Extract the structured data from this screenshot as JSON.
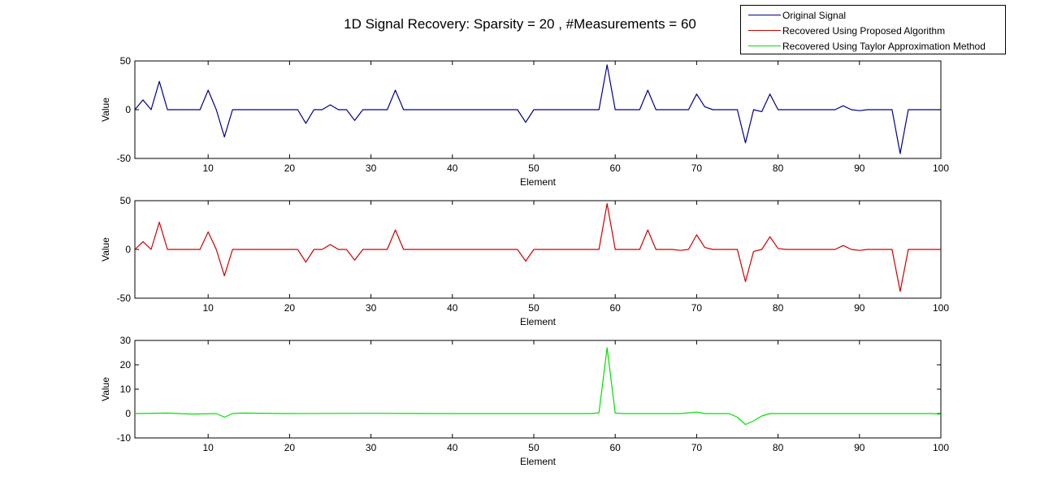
{
  "title": "1D Signal Recovery: Sparsity = 20 , #Measurements = 60",
  "legend": [
    {
      "label": "Original Signal",
      "color": "#00008b"
    },
    {
      "label": "Recovered Using Proposed Algorithm",
      "color": "#cc0000"
    },
    {
      "label": "Recovered Using Taylor Approximation Method",
      "color": "#00e000"
    }
  ],
  "chart_data": [
    {
      "type": "line",
      "xlabel": "Element",
      "ylabel": "Value",
      "xlim": [
        1,
        100
      ],
      "ylim": [
        -50,
        50
      ],
      "xticks": [
        10,
        20,
        30,
        40,
        50,
        60,
        70,
        80,
        90,
        100
      ],
      "yticks": [
        -50,
        0,
        50
      ],
      "series": [
        {
          "name": "Original Signal",
          "color": "#00008b",
          "points": [
            [
              1,
              0
            ],
            [
              2,
              10
            ],
            [
              3,
              0
            ],
            [
              4,
              29
            ],
            [
              5,
              0
            ],
            [
              9,
              0
            ],
            [
              10,
              20
            ],
            [
              11,
              0
            ],
            [
              12,
              -28
            ],
            [
              13,
              0
            ],
            [
              21,
              0
            ],
            [
              22,
              -14
            ],
            [
              23,
              0
            ],
            [
              24,
              0
            ],
            [
              25,
              5
            ],
            [
              26,
              0
            ],
            [
              27,
              0
            ],
            [
              28,
              -11
            ],
            [
              29,
              0
            ],
            [
              32,
              0
            ],
            [
              33,
              20
            ],
            [
              34,
              0
            ],
            [
              48,
              0
            ],
            [
              49,
              -13
            ],
            [
              50,
              0
            ],
            [
              58,
              0
            ],
            [
              59,
              46
            ],
            [
              60,
              0
            ],
            [
              63,
              0
            ],
            [
              64,
              20
            ],
            [
              65,
              0
            ],
            [
              69,
              0
            ],
            [
              70,
              16
            ],
            [
              71,
              3
            ],
            [
              72,
              0
            ],
            [
              75,
              0
            ],
            [
              76,
              -34
            ],
            [
              77,
              0
            ],
            [
              78,
              -2
            ],
            [
              79,
              16
            ],
            [
              80,
              0
            ],
            [
              87,
              0
            ],
            [
              88,
              4
            ],
            [
              89,
              0
            ],
            [
              90,
              -1
            ],
            [
              91,
              0
            ],
            [
              94,
              0
            ],
            [
              95,
              -45
            ],
            [
              96,
              0
            ],
            [
              100,
              0
            ]
          ]
        }
      ]
    },
    {
      "type": "line",
      "xlabel": "Element",
      "ylabel": "Value",
      "xlim": [
        1,
        100
      ],
      "ylim": [
        -50,
        50
      ],
      "xticks": [
        10,
        20,
        30,
        40,
        50,
        60,
        70,
        80,
        90,
        100
      ],
      "yticks": [
        -50,
        0,
        50
      ],
      "series": [
        {
          "name": "Recovered Using Proposed Algorithm",
          "color": "#cc0000",
          "points": [
            [
              1,
              0
            ],
            [
              2,
              8
            ],
            [
              3,
              0
            ],
            [
              4,
              28
            ],
            [
              5,
              0
            ],
            [
              9,
              0
            ],
            [
              10,
              18
            ],
            [
              11,
              0
            ],
            [
              12,
              -27
            ],
            [
              13,
              0
            ],
            [
              21,
              0
            ],
            [
              22,
              -13
            ],
            [
              23,
              0
            ],
            [
              24,
              0
            ],
            [
              25,
              5
            ],
            [
              26,
              0
            ],
            [
              27,
              0
            ],
            [
              28,
              -11
            ],
            [
              29,
              0
            ],
            [
              32,
              0
            ],
            [
              33,
              20
            ],
            [
              34,
              0
            ],
            [
              48,
              0
            ],
            [
              49,
              -12
            ],
            [
              50,
              0
            ],
            [
              58,
              0
            ],
            [
              59,
              47
            ],
            [
              60,
              0
            ],
            [
              63,
              0
            ],
            [
              64,
              20
            ],
            [
              65,
              0
            ],
            [
              67,
              0
            ],
            [
              68,
              -1
            ],
            [
              69,
              0
            ],
            [
              70,
              15
            ],
            [
              71,
              2
            ],
            [
              72,
              0
            ],
            [
              75,
              0
            ],
            [
              76,
              -33
            ],
            [
              77,
              -2
            ],
            [
              78,
              0
            ],
            [
              79,
              13
            ],
            [
              80,
              1
            ],
            [
              81,
              0
            ],
            [
              87,
              0
            ],
            [
              88,
              4
            ],
            [
              89,
              0
            ],
            [
              90,
              -1
            ],
            [
              91,
              0
            ],
            [
              94,
              0
            ],
            [
              95,
              -43
            ],
            [
              96,
              0
            ],
            [
              100,
              0
            ]
          ]
        }
      ]
    },
    {
      "type": "line",
      "xlabel": "Element",
      "ylabel": "Value",
      "xlim": [
        1,
        100
      ],
      "ylim": [
        -10,
        30
      ],
      "xticks": [
        10,
        20,
        30,
        40,
        50,
        60,
        70,
        80,
        90,
        100
      ],
      "yticks": [
        -10,
        0,
        10,
        20,
        30
      ],
      "series": [
        {
          "name": "Recovered Using Taylor Approximation Method",
          "color": "#00e000",
          "points": [
            [
              1,
              0
            ],
            [
              5,
              0.2
            ],
            [
              8,
              -0.2
            ],
            [
              11,
              0
            ],
            [
              12,
              -1.5
            ],
            [
              13,
              0
            ],
            [
              14,
              0.2
            ],
            [
              20,
              0
            ],
            [
              30,
              0.1
            ],
            [
              40,
              0
            ],
            [
              50,
              0
            ],
            [
              57,
              0
            ],
            [
              58,
              0.3
            ],
            [
              59,
              27
            ],
            [
              60,
              0.2
            ],
            [
              61,
              0
            ],
            [
              68,
              0
            ],
            [
              70,
              0.6
            ],
            [
              71,
              0
            ],
            [
              74,
              0
            ],
            [
              75,
              -1.5
            ],
            [
              76,
              -4.5
            ],
            [
              77,
              -3
            ],
            [
              78,
              -1
            ],
            [
              79,
              0
            ],
            [
              90,
              0
            ],
            [
              99,
              0
            ],
            [
              100,
              -0.3
            ]
          ]
        }
      ]
    }
  ]
}
